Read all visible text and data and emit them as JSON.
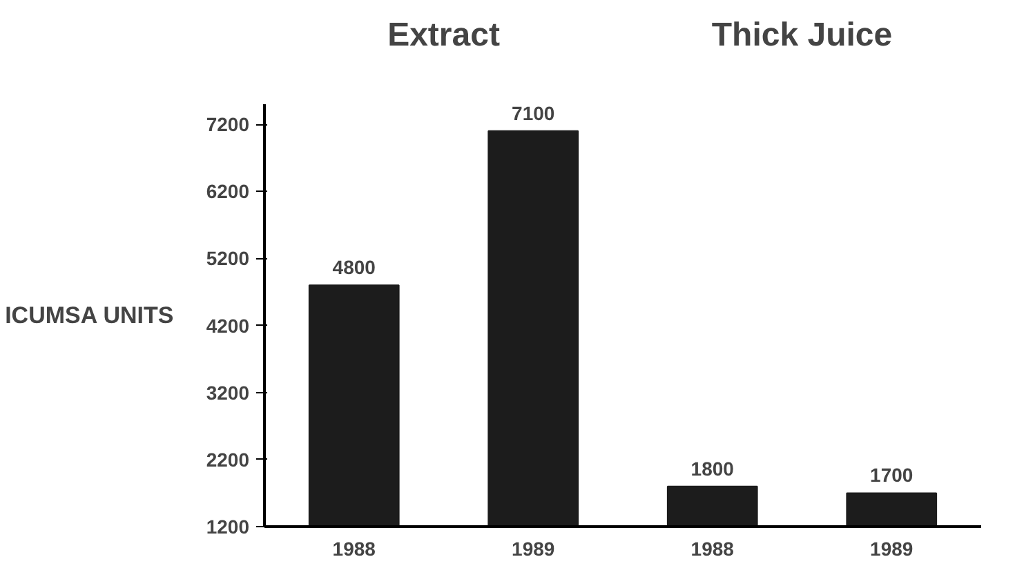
{
  "chart_data": {
    "type": "bar",
    "categories": [
      "1988",
      "1989",
      "1988",
      "1989"
    ],
    "values": [
      4800,
      7100,
      1800,
      1700
    ],
    "color": "#1c1c1c",
    "ylabel": "ICUMSA UNITS",
    "ylim": [
      1200,
      7500
    ],
    "yticks": [
      1200,
      2200,
      3200,
      4200,
      5200,
      6200,
      7200
    ],
    "grid": false,
    "data_labels": true,
    "annotations": [
      "Extract",
      "Thick Juice"
    ]
  }
}
